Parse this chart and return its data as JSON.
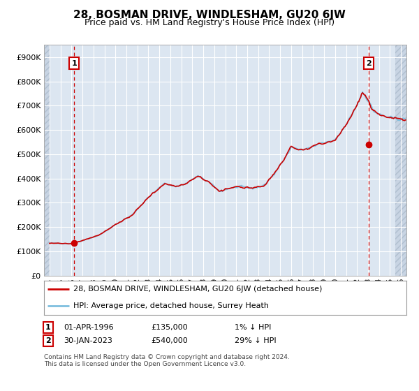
{
  "title": "28, BOSMAN DRIVE, WINDLESHAM, GU20 6JW",
  "subtitle": "Price paid vs. HM Land Registry's House Price Index (HPI)",
  "legend_line1": "28, BOSMAN DRIVE, WINDLESHAM, GU20 6JW (detached house)",
  "legend_line2": "HPI: Average price, detached house, Surrey Heath",
  "annotation1_date": "01-APR-1996",
  "annotation1_price": "£135,000",
  "annotation1_hpi": "1% ↓ HPI",
  "annotation2_date": "30-JAN-2023",
  "annotation2_price": "£540,000",
  "annotation2_hpi": "29% ↓ HPI",
  "footnote": "Contains HM Land Registry data © Crown copyright and database right 2024.\nThis data is licensed under the Open Government Licence v3.0.",
  "plot_bg_color": "#dce6f1",
  "outer_bg_color": "#ffffff",
  "hpi_color": "#7fbfdf",
  "price_color": "#cc0000",
  "marker_color": "#cc0000",
  "vline_color": "#cc0000",
  "grid_color": "#ffffff",
  "hatch_color": "#c8d4e3",
  "ylim": [
    0,
    950000
  ],
  "yticks": [
    0,
    100000,
    200000,
    300000,
    400000,
    500000,
    600000,
    700000,
    800000,
    900000
  ],
  "ytick_labels": [
    "£0",
    "£100K",
    "£200K",
    "£300K",
    "£400K",
    "£500K",
    "£600K",
    "£700K",
    "£800K",
    "£900K"
  ],
  "xlim_start": 1993.5,
  "xlim_end": 2026.5,
  "xtick_years": [
    1994,
    1995,
    1996,
    1997,
    1998,
    1999,
    2000,
    2001,
    2002,
    2003,
    2004,
    2005,
    2006,
    2007,
    2008,
    2009,
    2010,
    2011,
    2012,
    2013,
    2014,
    2015,
    2016,
    2017,
    2018,
    2019,
    2020,
    2021,
    2022,
    2023,
    2024,
    2025,
    2026
  ],
  "sale1_x": 1996.25,
  "sale1_y": 135000,
  "sale2_x": 2023.08,
  "sale2_y": 540000
}
